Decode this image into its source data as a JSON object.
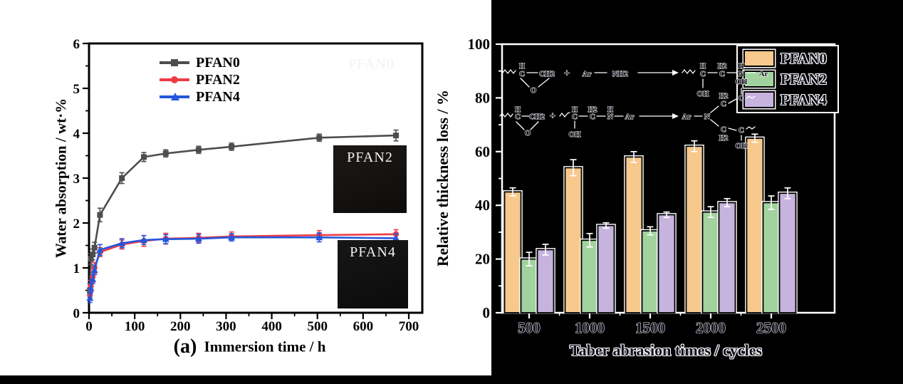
{
  "panels": {
    "a": {
      "label": "(a)"
    }
  },
  "chart_data": [
    {
      "type": "line",
      "title": "",
      "xlabel": "Immersion time / h",
      "ylabel": "Water absorption / wt·%",
      "xlim": [
        0,
        700
      ],
      "ylim": [
        0,
        6
      ],
      "xticks": [
        0,
        100,
        200,
        300,
        400,
        500,
        600,
        700
      ],
      "yticks": [
        0,
        1,
        2,
        3,
        4,
        5,
        6
      ],
      "legend_position": "upper-left-inside",
      "x": [
        2,
        4,
        8,
        12,
        24,
        72,
        120,
        168,
        240,
        312,
        504,
        672
      ],
      "series": [
        {
          "name": "PFAN0",
          "color": "#4d4d4d",
          "marker": "square",
          "values": [
            0.5,
            1.2,
            1.3,
            1.45,
            2.18,
            3.0,
            3.47,
            3.55,
            3.63,
            3.7,
            3.9,
            3.95
          ],
          "errors": [
            0.15,
            0.12,
            0.12,
            0.12,
            0.15,
            0.12,
            0.1,
            0.08,
            0.08,
            0.08,
            0.08,
            0.12
          ]
        },
        {
          "name": "PFAN2",
          "color": "#ee3b43",
          "marker": "circle",
          "values": [
            0.4,
            0.6,
            0.8,
            1.0,
            1.35,
            1.52,
            1.6,
            1.65,
            1.67,
            1.7,
            1.73,
            1.75
          ],
          "errors": [
            0.12,
            0.12,
            0.12,
            0.12,
            0.1,
            0.1,
            0.12,
            0.12,
            0.1,
            0.1,
            0.1,
            0.1
          ]
        },
        {
          "name": "PFAN4",
          "color": "#2357dd",
          "marker": "triangle",
          "values": [
            0.33,
            0.55,
            0.75,
            0.95,
            1.4,
            1.55,
            1.62,
            1.64,
            1.65,
            1.68,
            1.68,
            1.66
          ],
          "errors": [
            0.1,
            0.1,
            0.1,
            0.1,
            0.12,
            0.1,
            0.1,
            0.1,
            0.1,
            0.08,
            0.1,
            0.1
          ]
        }
      ],
      "insets": [
        {
          "label": "PFAN0"
        },
        {
          "label": "PFAN2"
        },
        {
          "label": "PFAN4"
        }
      ]
    },
    {
      "type": "bar",
      "title": "",
      "xlabel": "Taber abrasion times / cycles",
      "ylabel": "Relative thickness loss / %",
      "ylim": [
        0,
        100
      ],
      "yticks": [
        0,
        20,
        40,
        60,
        80,
        100
      ],
      "legend_position": "upper-right-inside",
      "categories": [
        "500",
        "1000",
        "1500",
        "2000",
        "2500"
      ],
      "series": [
        {
          "name": "PFAN0",
          "color": "#f8c98c",
          "values": [
            45,
            54,
            58,
            62,
            65
          ],
          "errors": [
            1.5,
            3,
            2,
            2,
            1.5
          ]
        },
        {
          "name": "PFAN2",
          "color": "#a2d39f",
          "values": [
            20,
            27,
            30.5,
            37.5,
            41
          ],
          "errors": [
            2.5,
            2.5,
            1.5,
            2,
            2.5
          ]
        },
        {
          "name": "PFAN4",
          "color": "#c6b3de",
          "values": [
            23.5,
            32.5,
            36.5,
            41,
            44.5
          ],
          "errors": [
            2,
            1,
            1,
            1.5,
            2
          ]
        }
      ]
    }
  ],
  "chem": {
    "atoms": {
      "H": "H",
      "C": "C",
      "CH2": "CH2",
      "O": "O",
      "plus": "+",
      "Ar": "Ar",
      "NH2": "NH2",
      "OH": "OH",
      "N": "N",
      "H2": "H2"
    }
  },
  "colors": {
    "panel_a_bg": "#ffffff",
    "panel_b_bg": "#000000",
    "axis_a": "#000000",
    "axis_b": "#ffffff"
  }
}
